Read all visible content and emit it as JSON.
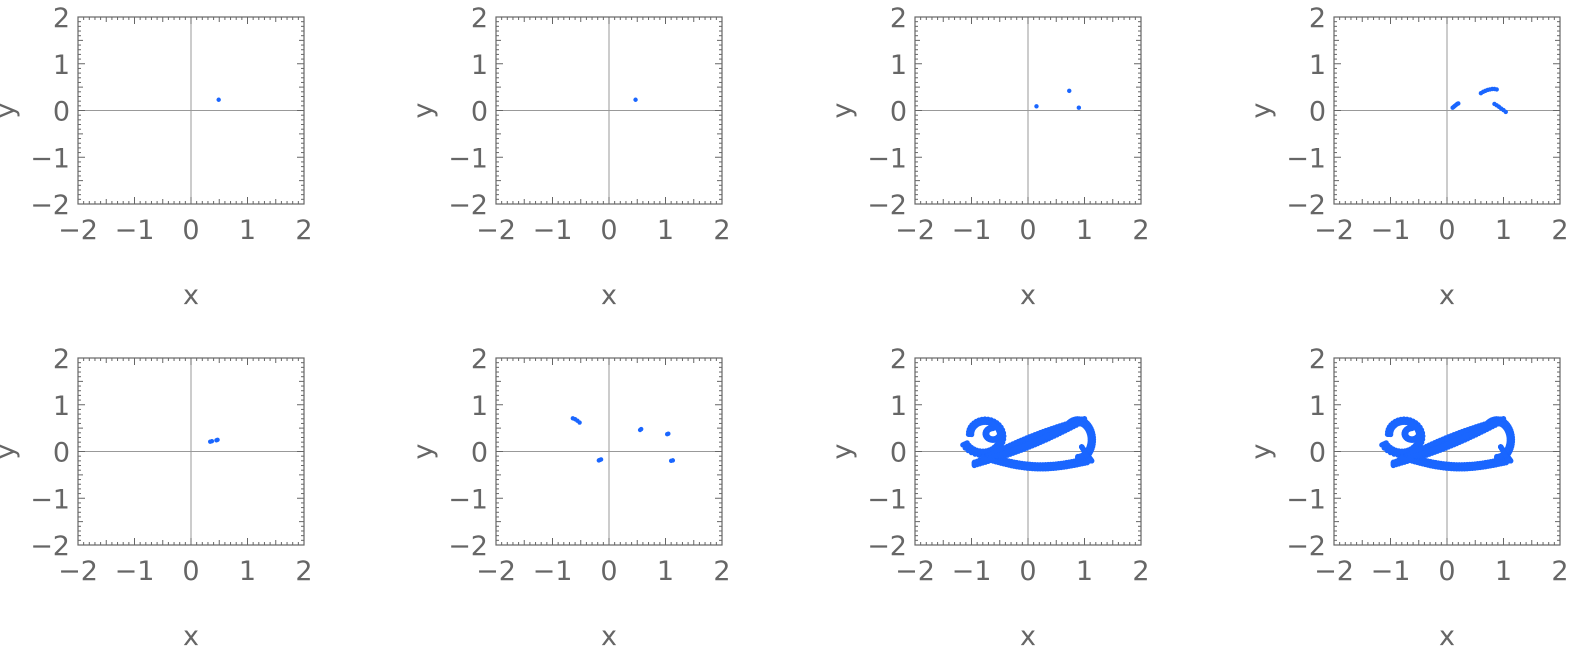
{
  "panel_colors": {
    "points": "#1a66ff",
    "frame": "#666666",
    "axis": "#999999"
  },
  "chart_data": [
    {
      "type": "scatter",
      "panel": 1,
      "xlabel": "x",
      "ylabel": "y",
      "xlim": [
        -2,
        2
      ],
      "ylim": [
        -2,
        2
      ],
      "xticks": [
        "-2",
        "-1",
        "0",
        "1",
        "2"
      ],
      "yticks": [
        "2",
        "1",
        "0",
        "-1",
        "-2"
      ],
      "grid": false,
      "series": [
        {
          "points": [
            [
              0.49,
              0.23
            ]
          ]
        }
      ]
    },
    {
      "type": "scatter",
      "panel": 2,
      "xlabel": "x",
      "ylabel": "y",
      "xlim": [
        -2,
        2
      ],
      "ylim": [
        -2,
        2
      ],
      "xticks": [
        "-2",
        "-1",
        "0",
        "1",
        "2"
      ],
      "yticks": [
        "2",
        "1",
        "0",
        "-1",
        "-2"
      ],
      "grid": false,
      "series": [
        {
          "points": [
            [
              0.47,
              0.23
            ]
          ]
        }
      ]
    },
    {
      "type": "scatter",
      "panel": 3,
      "xlabel": "x",
      "ylabel": "y",
      "xlim": [
        -2,
        2
      ],
      "ylim": [
        -2,
        2
      ],
      "xticks": [
        "-2",
        "-1",
        "0",
        "1",
        "2"
      ],
      "yticks": [
        "2",
        "1",
        "0",
        "-1",
        "-2"
      ],
      "grid": false,
      "series": [
        {
          "points": [
            [
              0.15,
              0.09
            ],
            [
              0.73,
              0.42
            ],
            [
              0.9,
              0.06
            ]
          ]
        }
      ]
    },
    {
      "type": "scatter",
      "panel": 4,
      "xlabel": "x",
      "ylabel": "y",
      "xlim": [
        -2,
        2
      ],
      "ylim": [
        -2,
        2
      ],
      "xticks": [
        "-2",
        "-1",
        "0",
        "1",
        "2"
      ],
      "yticks": [
        "2",
        "1",
        "0",
        "-1",
        "-2"
      ],
      "grid": false,
      "series": [
        {
          "points": [
            [
              0.1,
              0.06
            ],
            [
              0.12,
              0.08
            ],
            [
              0.14,
              0.1
            ],
            [
              0.16,
              0.12
            ],
            [
              0.18,
              0.14
            ],
            [
              0.2,
              0.15
            ],
            [
              0.6,
              0.37
            ],
            [
              0.64,
              0.4
            ],
            [
              0.68,
              0.42
            ],
            [
              0.72,
              0.44
            ],
            [
              0.76,
              0.45
            ],
            [
              0.8,
              0.46
            ],
            [
              0.84,
              0.46
            ],
            [
              0.88,
              0.45
            ],
            [
              0.84,
              0.14
            ],
            [
              0.88,
              0.11
            ],
            [
              0.92,
              0.08
            ],
            [
              0.96,
              0.04
            ],
            [
              1.0,
              0.01
            ],
            [
              1.04,
              -0.03
            ]
          ]
        }
      ]
    },
    {
      "type": "scatter",
      "panel": 5,
      "xlabel": "x",
      "ylabel": "y",
      "xlim": [
        -2,
        2
      ],
      "ylim": [
        -2,
        2
      ],
      "xticks": [
        "-2",
        "-1",
        "0",
        "1",
        "2"
      ],
      "yticks": [
        "2",
        "1",
        "0",
        "-1",
        "-2"
      ],
      "grid": false,
      "series": [
        {
          "points": [
            [
              0.34,
              0.21
            ],
            [
              0.37,
              0.22
            ],
            [
              0.45,
              0.24
            ],
            [
              0.47,
              0.25
            ]
          ]
        }
      ]
    },
    {
      "type": "scatter",
      "panel": 6,
      "xlabel": "x",
      "ylabel": "y",
      "xlim": [
        -2,
        2
      ],
      "ylim": [
        -2,
        2
      ],
      "xticks": [
        "-2",
        "-1",
        "0",
        "1",
        "2"
      ],
      "yticks": [
        "2",
        "1",
        "0",
        "-1",
        "-2"
      ],
      "grid": false,
      "series": [
        {
          "points": [
            [
              -0.64,
              0.71
            ],
            [
              -0.6,
              0.69
            ],
            [
              -0.56,
              0.66
            ],
            [
              -0.52,
              0.62
            ],
            [
              0.55,
              0.46
            ],
            [
              0.57,
              0.48
            ],
            [
              1.03,
              0.37
            ],
            [
              1.05,
              0.38
            ],
            [
              -0.18,
              -0.19
            ],
            [
              -0.14,
              -0.17
            ],
            [
              1.1,
              -0.2
            ],
            [
              1.13,
              -0.19
            ],
            [
              -0.16,
              -0.18
            ]
          ]
        }
      ]
    },
    {
      "type": "scatter",
      "panel": 7,
      "xlabel": "x",
      "ylabel": "y",
      "xlim": [
        -2,
        2
      ],
      "ylim": [
        -2,
        2
      ],
      "xticks": [
        "-2",
        "-1",
        "0",
        "1",
        "2"
      ],
      "yticks": [
        "2",
        "1",
        "0",
        "-1",
        "-2"
      ],
      "grid": false,
      "series": [
        {
          "attractor": "double-scroll",
          "x_range": [
            -1.18,
            1.18
          ],
          "y_range": [
            -0.52,
            0.82
          ]
        }
      ]
    },
    {
      "type": "scatter",
      "panel": 8,
      "xlabel": "x",
      "ylabel": "y",
      "xlim": [
        -2,
        2
      ],
      "ylim": [
        -2,
        2
      ],
      "xticks": [
        "-2",
        "-1",
        "0",
        "1",
        "2"
      ],
      "yticks": [
        "2",
        "1",
        "0",
        "-1",
        "-2"
      ],
      "grid": false,
      "series": [
        {
          "attractor": "double-scroll",
          "x_range": [
            -1.18,
            1.18
          ],
          "y_range": [
            -0.52,
            0.82
          ]
        }
      ]
    }
  ]
}
